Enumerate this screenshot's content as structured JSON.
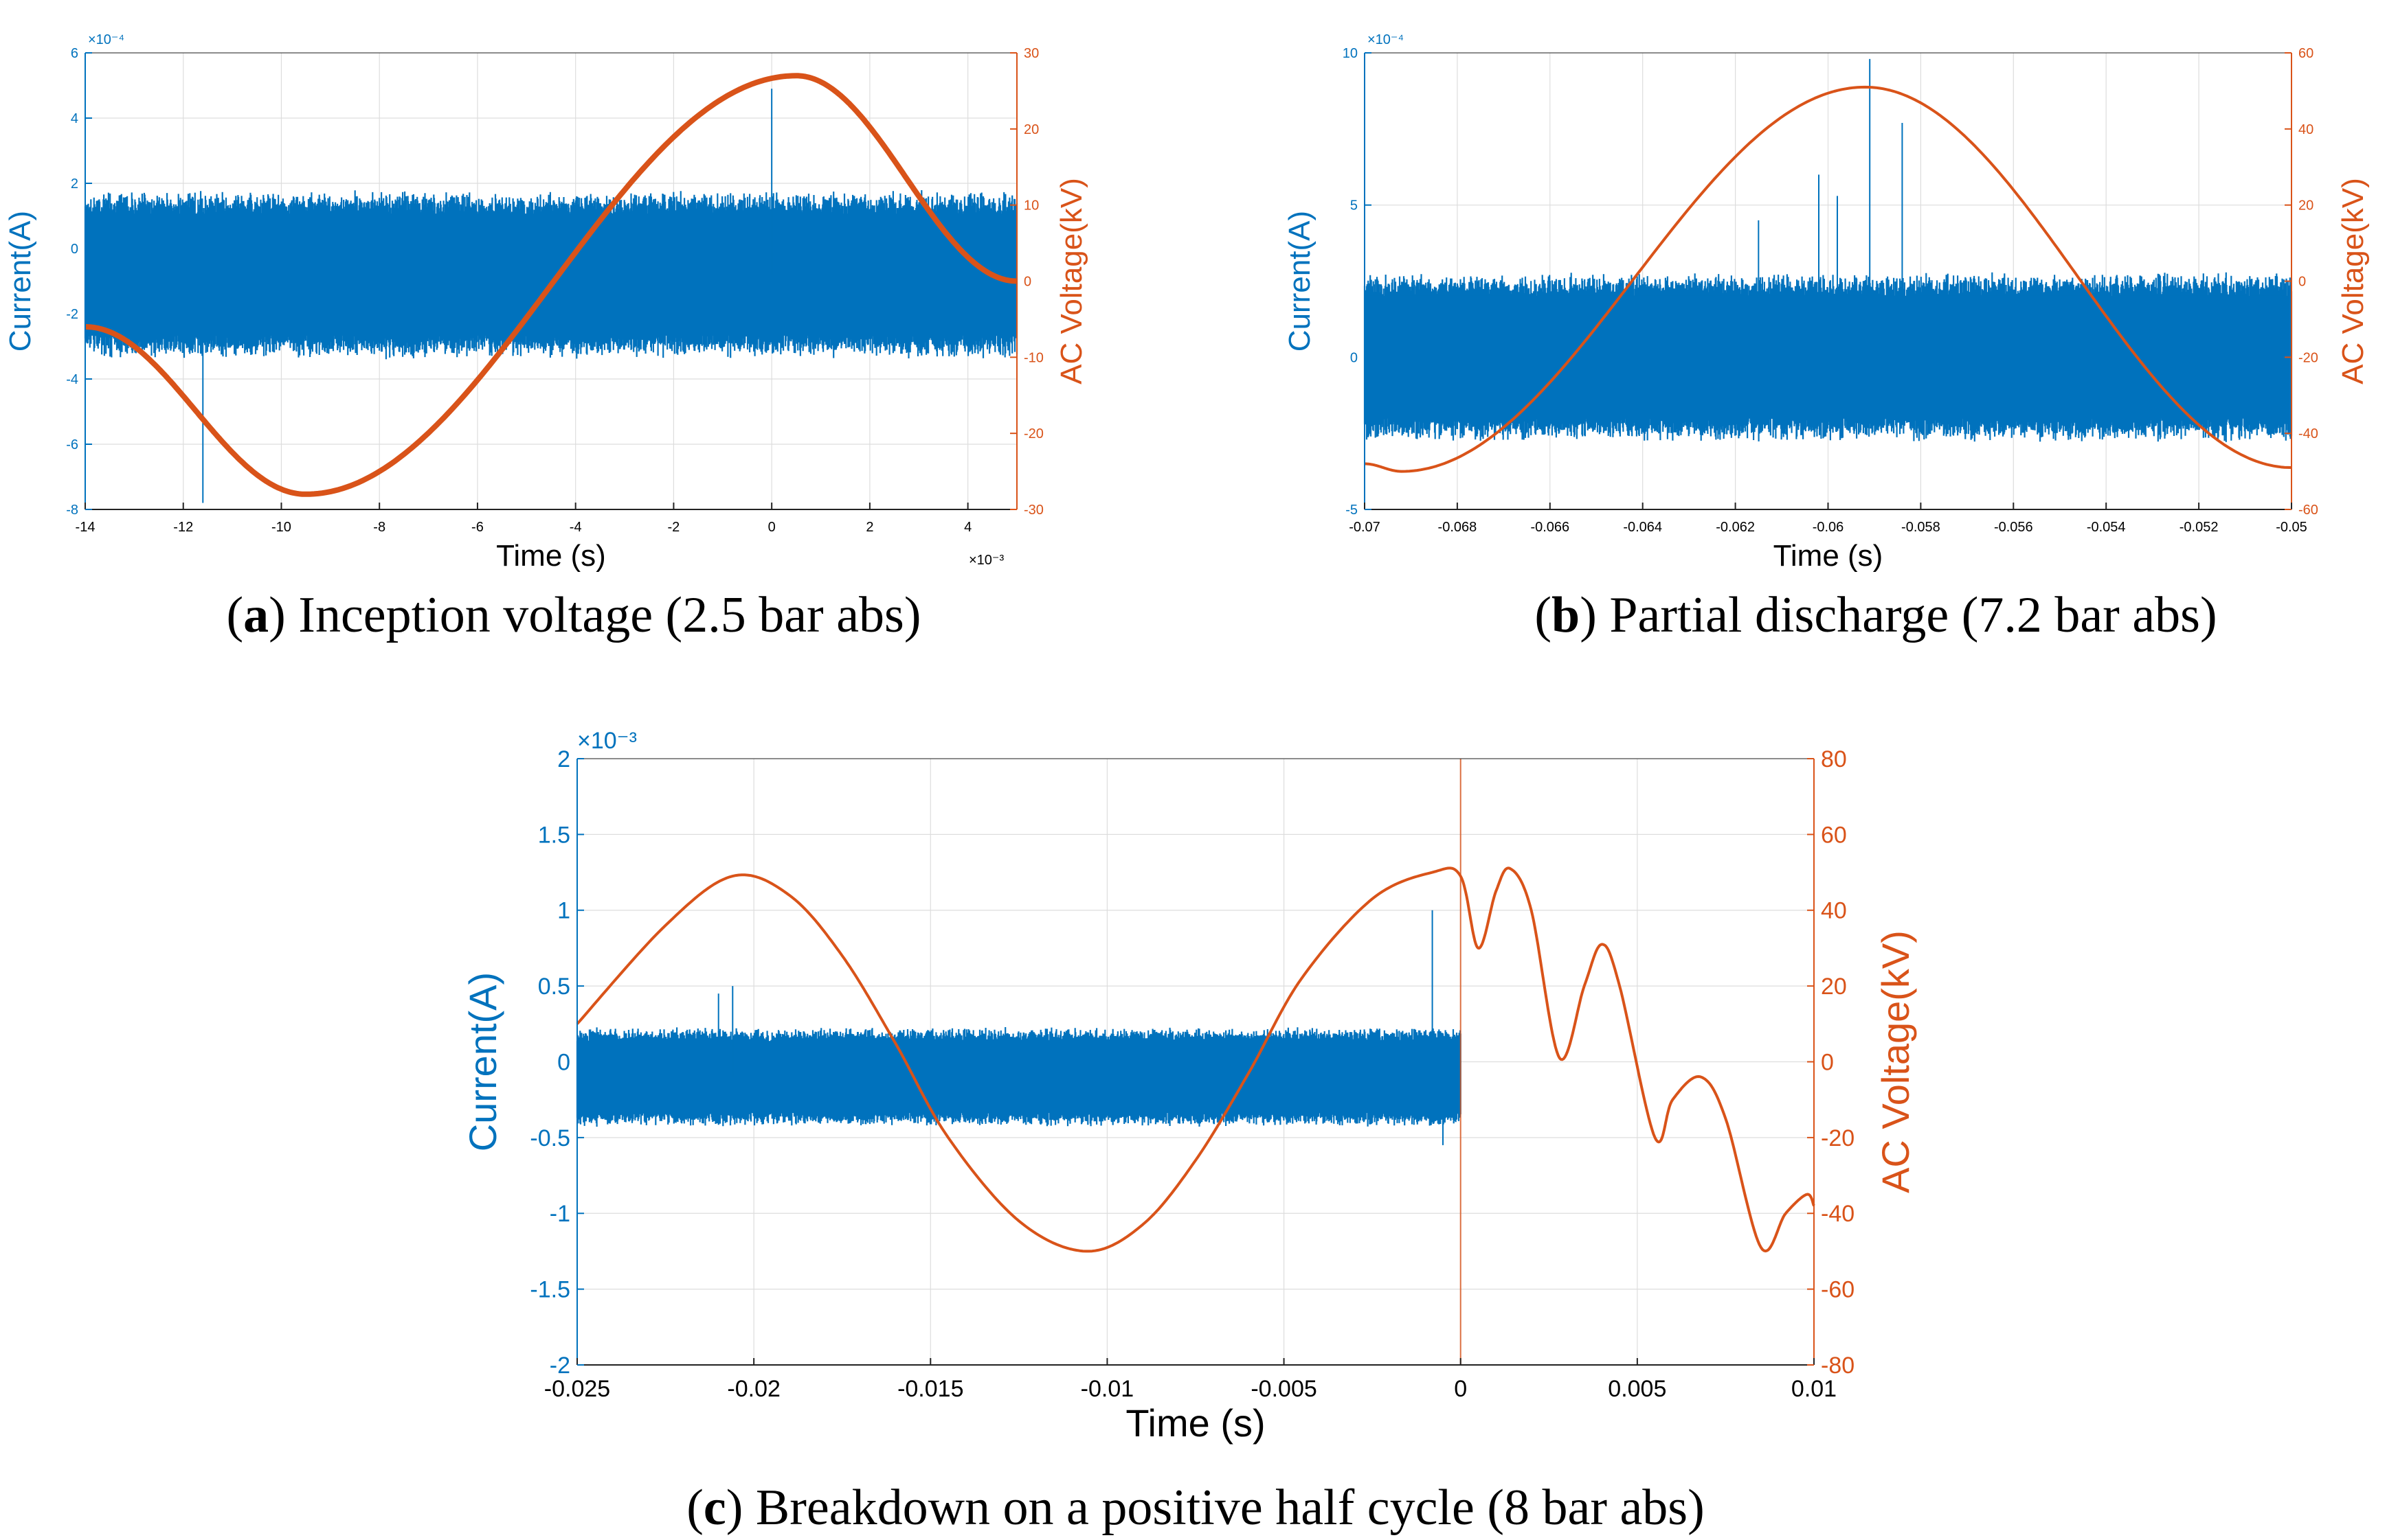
{
  "colors": {
    "current": "#0072bd",
    "voltage": "#d95319",
    "grid": "#dddddd",
    "axis": "#222222"
  },
  "chart_data": [
    {
      "id": "a",
      "type": "line",
      "caption_letter": "a",
      "caption_text": "Inception voltage (2.5 bar abs)",
      "xlabel": "Time (s)",
      "ylabel_left": "Current(A)",
      "ylabel_right": "AC Voltage(kV)",
      "x_exponent": "×10⁻³",
      "y_exponent": "×10⁻⁴",
      "xlim": [
        -14,
        5
      ],
      "xticks": [
        -14,
        -12,
        -10,
        -8,
        -6,
        -4,
        -2,
        0,
        2,
        4
      ],
      "xtick_labels": [
        "-14",
        "-12",
        "-10",
        "-8",
        "-6",
        "-4",
        "-2",
        "0",
        "2",
        "4"
      ],
      "ylim_left": [
        -8,
        6
      ],
      "yticks_left": [
        -8,
        -6,
        -4,
        -2,
        0,
        2,
        4,
        6
      ],
      "ytick_labels_left": [
        "-8",
        "-6",
        "-4",
        "-2",
        "0",
        "2",
        "4",
        "6"
      ],
      "ylim_right": [
        -30,
        30
      ],
      "yticks_right": [
        -30,
        -20,
        -10,
        0,
        10,
        20,
        30
      ],
      "ytick_labels_right": [
        "-30",
        "-20",
        "-10",
        "0",
        "10",
        "20",
        "30"
      ],
      "series": [
        {
          "name": "Current",
          "axis": "left",
          "kind": "noise",
          "x_range": [
            -14,
            5
          ],
          "center": -0.8,
          "half_width": 2.6,
          "spikes": [
            [
              -11.6,
              -7.8
            ],
            [
              0,
              4.9
            ]
          ]
        },
        {
          "name": "AC Voltage",
          "axis": "right",
          "kind": "sine",
          "x": [
            -14,
            -9.5,
            0.5,
            5
          ],
          "y": [
            -6,
            -28,
            27,
            0
          ]
        }
      ]
    },
    {
      "id": "b",
      "type": "line",
      "caption_letter": "b",
      "caption_text": "Partial discharge (7.2 bar abs)",
      "xlabel": "Time (s)",
      "ylabel_left": "Current(A)",
      "ylabel_right": "AC Voltage(kV)",
      "x_exponent": "",
      "y_exponent": "×10⁻⁴",
      "xlim": [
        -0.07,
        -0.05
      ],
      "xticks": [
        -0.07,
        -0.068,
        -0.066,
        -0.064,
        -0.062,
        -0.06,
        -0.058,
        -0.056,
        -0.054,
        -0.052,
        -0.05
      ],
      "xtick_labels": [
        "-0.07",
        "-0.068",
        "-0.066",
        "-0.064",
        "-0.062",
        "-0.06",
        "-0.058",
        "-0.056",
        "-0.054",
        "-0.052",
        "-0.05"
      ],
      "ylim_left": [
        -5,
        10
      ],
      "yticks_left": [
        -5,
        0,
        5,
        10
      ],
      "ytick_labels_left": [
        "-5",
        "0",
        "5",
        "10"
      ],
      "ylim_right": [
        -60,
        60
      ],
      "yticks_right": [
        -60,
        -40,
        -20,
        0,
        20,
        40,
        60
      ],
      "ytick_labels_right": [
        "-60",
        "-40",
        "-20",
        "0",
        "20",
        "40",
        "60"
      ],
      "series": [
        {
          "name": "Current",
          "axis": "left",
          "kind": "noise",
          "x_range": [
            -0.07,
            -0.05
          ],
          "center": 0,
          "half_width": 2.8,
          "spikes": [
            [
              -0.0591,
              9.8
            ],
            [
              -0.0584,
              7.7
            ],
            [
              -0.0602,
              6.0
            ],
            [
              -0.0598,
              5.3
            ],
            [
              -0.0615,
              4.5
            ]
          ]
        },
        {
          "name": "AC Voltage",
          "axis": "right",
          "kind": "sine",
          "x": [
            -0.07,
            -0.0692,
            -0.0592,
            -0.05
          ],
          "y": [
            -48,
            -50,
            51,
            -49
          ]
        }
      ]
    },
    {
      "id": "c",
      "type": "line",
      "caption_letter": "c",
      "caption_text": "Breakdown on a positive half cycle (8 bar abs)",
      "xlabel": "Time (s)",
      "ylabel_left": "Current(A)",
      "ylabel_right": "AC Voltage(kV)",
      "x_exponent": "",
      "y_exponent": "×10⁻³",
      "xlim": [
        -0.025,
        0.01
      ],
      "xticks": [
        -0.025,
        -0.02,
        -0.015,
        -0.01,
        -0.005,
        0,
        0.005,
        0.01
      ],
      "xtick_labels": [
        "-0.025",
        "-0.02",
        "-0.015",
        "-0.01",
        "-0.005",
        "0",
        "0.005",
        "0.01"
      ],
      "ylim_left": [
        -2,
        2
      ],
      "yticks_left": [
        -2,
        -1.5,
        -1,
        -0.5,
        0,
        0.5,
        1,
        1.5,
        2
      ],
      "ytick_labels_left": [
        "-2",
        "-1.5",
        "-1",
        "-0.5",
        "0",
        "0.5",
        "1",
        "1.5",
        "2"
      ],
      "ylim_right": [
        -80,
        80
      ],
      "yticks_right": [
        -80,
        -60,
        -40,
        -20,
        0,
        20,
        40,
        60,
        80
      ],
      "ytick_labels_right": [
        "-80",
        "-60",
        "-40",
        "-20",
        "0",
        "20",
        "40",
        "60",
        "80"
      ],
      "breakdown_time": 0,
      "series": [
        {
          "name": "Current",
          "axis": "left",
          "kind": "noise",
          "x_range": [
            -0.025,
            0
          ],
          "center": -0.1,
          "half_width": 0.33,
          "spikes": [
            [
              -0.0206,
              0.5
            ],
            [
              -0.021,
              0.45
            ],
            [
              -0.0008,
              1.0
            ],
            [
              -0.0005,
              -0.55
            ]
          ]
        },
        {
          "name": "AC Voltage",
          "axis": "right",
          "kind": "line",
          "x": [
            -0.025,
            -0.0225,
            -0.0206,
            -0.019,
            -0.0175,
            -0.016,
            -0.0145,
            -0.0125,
            -0.0106,
            -0.009,
            -0.0075,
            -0.006,
            -0.0045,
            -0.0025,
            -0.0008,
            0,
            0.0005,
            0.001,
            0.0014,
            0.002,
            0.0028,
            0.0035,
            0.004,
            0.0045,
            0.0055,
            0.006,
            0.0068,
            0.0075,
            0.0085,
            0.0092,
            0.0098,
            0.01
          ],
          "y": [
            10,
            36,
            49,
            44,
            28,
            5,
            -20,
            -42,
            -50,
            -43,
            -26,
            -3,
            22,
            43,
            50,
            49,
            30,
            45,
            51,
            40,
            1,
            20,
            31,
            20,
            -20,
            -10,
            -4,
            -15,
            -49,
            -40,
            -35,
            -38
          ]
        }
      ]
    }
  ]
}
